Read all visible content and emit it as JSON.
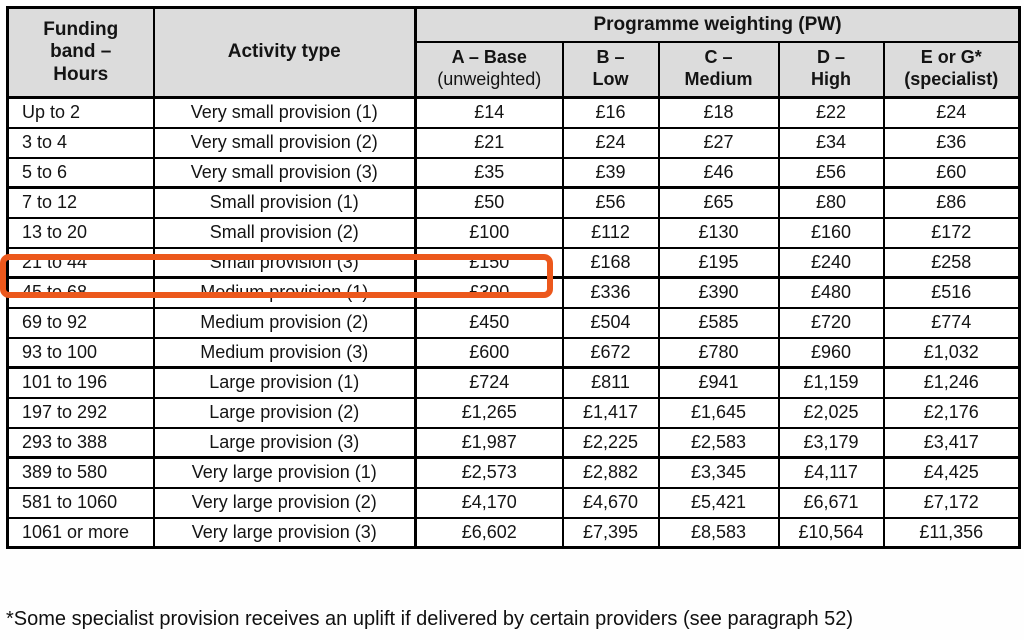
{
  "colors": {
    "highlight_orange": "#EC581C",
    "header_bg": "#DCDCDC",
    "border_black": "#000000"
  },
  "table": {
    "header": {
      "funding_band": "Funding\nband –\nHours",
      "activity_type": "Activity type",
      "pw_group": "Programme weighting (PW)",
      "pw_columns": [
        {
          "line1": "A – Base",
          "line2": "(unweighted)",
          "line2_regular": true
        },
        {
          "line1": "B –",
          "line2": "Low",
          "line2_regular": false
        },
        {
          "line1": "C –",
          "line2": "Medium",
          "line2_regular": false
        },
        {
          "line1": "D –",
          "line2": "High",
          "line2_regular": false
        },
        {
          "line1": "E or G*",
          "line2": "(specialist)",
          "line2_regular": false
        }
      ]
    },
    "rows": [
      {
        "band": "Up to 2",
        "activity": "Very small provision (1)",
        "values": [
          "£14",
          "£16",
          "£18",
          "£22",
          "£24"
        ],
        "group_end": false,
        "highlighted": false
      },
      {
        "band": "3 to 4",
        "activity": "Very small provision (2)",
        "values": [
          "£21",
          "£24",
          "£27",
          "£34",
          "£36"
        ],
        "group_end": false,
        "highlighted": false
      },
      {
        "band": "5 to 6",
        "activity": "Very small provision (3)",
        "values": [
          "£35",
          "£39",
          "£46",
          "£56",
          "£60"
        ],
        "group_end": true,
        "highlighted": false
      },
      {
        "band": "7 to 12",
        "activity": "Small provision (1)",
        "values": [
          "£50",
          "£56",
          "£65",
          "£80",
          "£86"
        ],
        "group_end": false,
        "highlighted": false
      },
      {
        "band": "13 to 20",
        "activity": "Small provision (2)",
        "values": [
          "£100",
          "£112",
          "£130",
          "£160",
          "£172"
        ],
        "group_end": false,
        "highlighted": false
      },
      {
        "band": "21 to 44",
        "activity": "Small provision (3)",
        "values": [
          "£150",
          "£168",
          "£195",
          "£240",
          "£258"
        ],
        "group_end": true,
        "highlighted": true
      },
      {
        "band": "45 to 68",
        "activity": "Medium provision (1)",
        "values": [
          "£300",
          "£336",
          "£390",
          "£480",
          "£516"
        ],
        "group_end": false,
        "highlighted": false
      },
      {
        "band": "69 to 92",
        "activity": "Medium provision (2)",
        "values": [
          "£450",
          "£504",
          "£585",
          "£720",
          "£774"
        ],
        "group_end": false,
        "highlighted": false
      },
      {
        "band": "93 to 100",
        "activity": "Medium provision (3)",
        "values": [
          "£600",
          "£672",
          "£780",
          "£960",
          "£1,032"
        ],
        "group_end": true,
        "highlighted": false
      },
      {
        "band": "101 to 196",
        "activity": "Large provision (1)",
        "values": [
          "£724",
          "£811",
          "£941",
          "£1,159",
          "£1,246"
        ],
        "group_end": false,
        "highlighted": false
      },
      {
        "band": "197 to 292",
        "activity": "Large provision (2)",
        "values": [
          "£1,265",
          "£1,417",
          "£1,645",
          "£2,025",
          "£2,176"
        ],
        "group_end": false,
        "highlighted": false
      },
      {
        "band": "293 to 388",
        "activity": "Large provision (3)",
        "values": [
          "£1,987",
          "£2,225",
          "£2,583",
          "£3,179",
          "£3,417"
        ],
        "group_end": true,
        "highlighted": false
      },
      {
        "band": "389 to 580",
        "activity": "Very large provision (1)",
        "values": [
          "£2,573",
          "£2,882",
          "£3,345",
          "£4,117",
          "£4,425"
        ],
        "group_end": false,
        "highlighted": false
      },
      {
        "band": "581 to 1060",
        "activity": "Very large provision (2)",
        "values": [
          "£4,170",
          "£4,670",
          "£5,421",
          "£6,671",
          "£7,172"
        ],
        "group_end": false,
        "highlighted": false
      },
      {
        "band": "1061 or more",
        "activity": "Very large provision (3)",
        "values": [
          "£6,602",
          "£7,395",
          "£8,583",
          "£10,564",
          "£11,356"
        ],
        "group_end": true,
        "highlighted": false
      }
    ]
  },
  "annotation": {
    "highlighted_band": "21 to 44"
  },
  "footnote": "*Some specialist provision receives an uplift if delivered by certain providers (see paragraph 52)"
}
